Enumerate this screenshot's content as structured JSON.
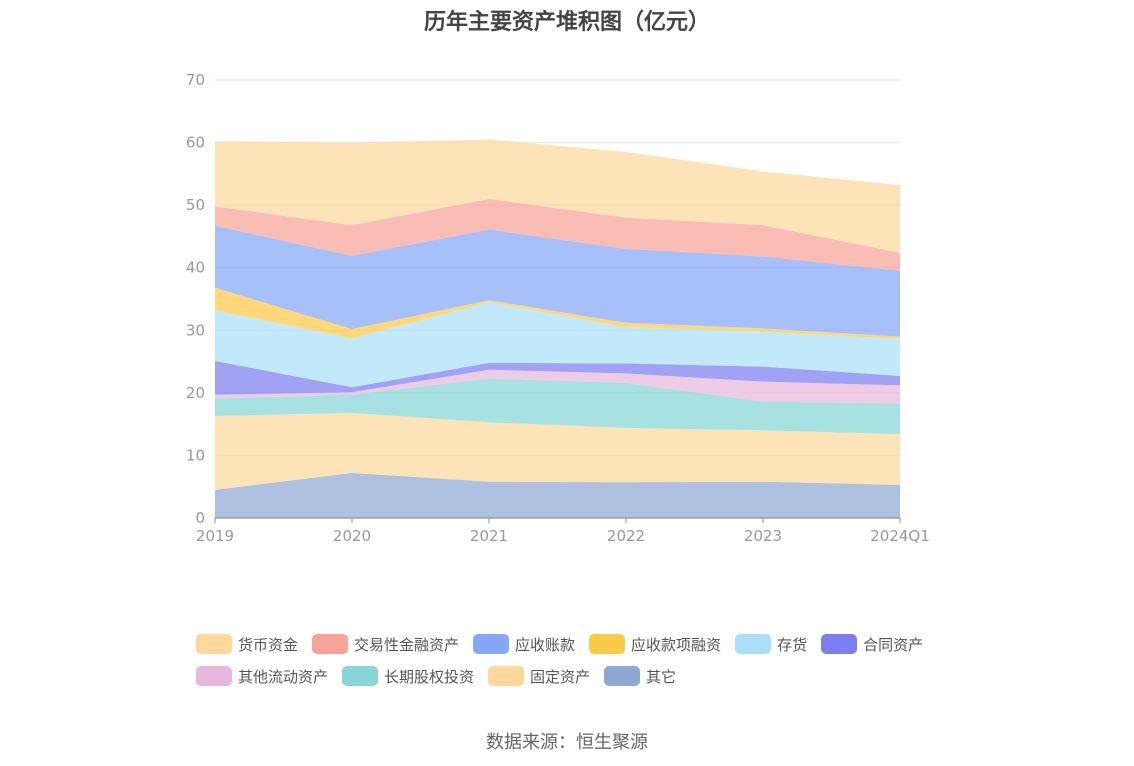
{
  "chart_data": {
    "type": "area",
    "stacked": true,
    "title": "历年主要资产堆积图（亿元）",
    "categories": [
      "2019",
      "2020",
      "2021",
      "2022",
      "2023",
      "2024Q1"
    ],
    "ylim": [
      0,
      70
    ],
    "yticks": [
      0,
      10,
      20,
      30,
      40,
      50,
      60,
      70
    ],
    "grid": true,
    "legend_position": "bottom",
    "series": [
      {
        "name": "其它",
        "color": "#8fa9d4",
        "values": [
          4.5,
          7.2,
          5.8,
          5.7,
          5.8,
          5.3
        ]
      },
      {
        "name": "固定资产",
        "color": "#fcd89c",
        "values": [
          11.8,
          9.6,
          9.5,
          8.7,
          8.2,
          8.1
        ]
      },
      {
        "name": "长期股权投资",
        "color": "#87d5d5",
        "values": [
          2.8,
          2.9,
          7.0,
          7.2,
          4.6,
          4.9
        ]
      },
      {
        "name": "其他流动资产",
        "color": "#e8b8dc",
        "values": [
          0.6,
          0.4,
          1.4,
          1.5,
          3.2,
          2.9
        ]
      },
      {
        "name": "合同资产",
        "color": "#7d7ef0",
        "values": [
          5.4,
          0.8,
          1.1,
          1.6,
          2.4,
          1.5
        ]
      },
      {
        "name": "存货",
        "color": "#aae0f8",
        "values": [
          8.1,
          7.8,
          9.7,
          5.8,
          5.6,
          5.9
        ]
      },
      {
        "name": "应收款项融资",
        "color": "#fdc948",
        "values": [
          3.6,
          1.5,
          0.3,
          0.7,
          0.5,
          0.4
        ]
      },
      {
        "name": "应收账款",
        "color": "#86a7f8",
        "values": [
          9.9,
          11.7,
          11.3,
          11.8,
          11.5,
          10.5
        ]
      },
      {
        "name": "交易性金融资产",
        "color": "#f8a39a",
        "values": [
          3.1,
          4.9,
          4.9,
          5.0,
          5.0,
          2.9
        ]
      },
      {
        "name": "货币资金",
        "color": "#fcd89c",
        "values": [
          10.4,
          13.2,
          9.5,
          10.5,
          8.6,
          10.8
        ]
      }
    ]
  },
  "source_text": "数据来源：恒生聚源"
}
